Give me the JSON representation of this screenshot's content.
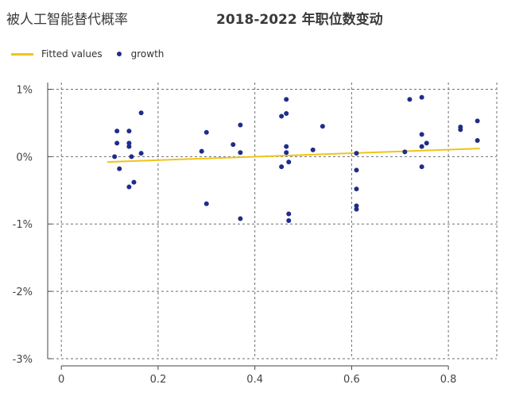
{
  "title_left": "被人工智能替代概率",
  "title_right": "2018-2022 年职位数变动",
  "legend": {
    "fitted": "Fitted values",
    "scatter": "growth"
  },
  "colors": {
    "fitted": "#f0c419",
    "points": "#1f2d8a",
    "grid": "#6e6e6e",
    "axis": "#444444"
  },
  "chart_data": {
    "type": "scatter",
    "title": "2018-2022 年职位数变动",
    "subtitle": "被人工智能替代概率",
    "xlabel": "",
    "ylabel": "",
    "xlim": [
      -0.02,
      0.9
    ],
    "ylim": [
      -3,
      1.1
    ],
    "x_ticks": [
      0,
      0.2,
      0.4,
      0.6,
      0.8
    ],
    "x_tick_labels": [
      "0",
      "0.2",
      "0.4",
      "0.6",
      "0.8"
    ],
    "y_ticks": [
      1,
      0,
      -1,
      -2,
      -3
    ],
    "y_tick_labels": [
      "1%",
      "0%",
      "-1%",
      "-2%",
      "-3%"
    ],
    "grid": true,
    "legend_position": "top-left",
    "series": [
      {
        "name": "growth",
        "type": "scatter",
        "points": [
          [
            0.11,
            0.0
          ],
          [
            0.115,
            0.38
          ],
          [
            0.115,
            0.2
          ],
          [
            0.12,
            -0.18
          ],
          [
            0.14,
            0.38
          ],
          [
            0.14,
            0.2
          ],
          [
            0.14,
            0.15
          ],
          [
            0.14,
            -0.45
          ],
          [
            0.145,
            0.0
          ],
          [
            0.15,
            -0.38
          ],
          [
            0.165,
            0.65
          ],
          [
            0.165,
            0.05
          ],
          [
            0.29,
            0.08
          ],
          [
            0.3,
            0.36
          ],
          [
            0.3,
            -0.7
          ],
          [
            0.355,
            0.18
          ],
          [
            0.37,
            0.47
          ],
          [
            0.37,
            0.06
          ],
          [
            0.37,
            -0.92
          ],
          [
            0.455,
            0.6
          ],
          [
            0.455,
            -0.15
          ],
          [
            0.465,
            0.85
          ],
          [
            0.465,
            0.64
          ],
          [
            0.465,
            0.15
          ],
          [
            0.465,
            0.06
          ],
          [
            0.47,
            -0.08
          ],
          [
            0.47,
            -0.85
          ],
          [
            0.47,
            -0.95
          ],
          [
            0.52,
            0.1
          ],
          [
            0.54,
            0.45
          ],
          [
            0.61,
            0.05
          ],
          [
            0.61,
            -0.2
          ],
          [
            0.61,
            -0.48
          ],
          [
            0.61,
            -0.73
          ],
          [
            0.61,
            -0.78
          ],
          [
            0.71,
            0.07
          ],
          [
            0.72,
            0.85
          ],
          [
            0.745,
            0.88
          ],
          [
            0.745,
            0.33
          ],
          [
            0.745,
            0.15
          ],
          [
            0.745,
            -0.15
          ],
          [
            0.755,
            0.2
          ],
          [
            0.825,
            0.44
          ],
          [
            0.825,
            0.4
          ],
          [
            0.86,
            0.53
          ],
          [
            0.86,
            0.24
          ]
        ]
      },
      {
        "name": "Fitted values",
        "type": "line",
        "x": [
          0.095,
          0.865
        ],
        "y": [
          -0.08,
          0.12
        ]
      }
    ]
  }
}
